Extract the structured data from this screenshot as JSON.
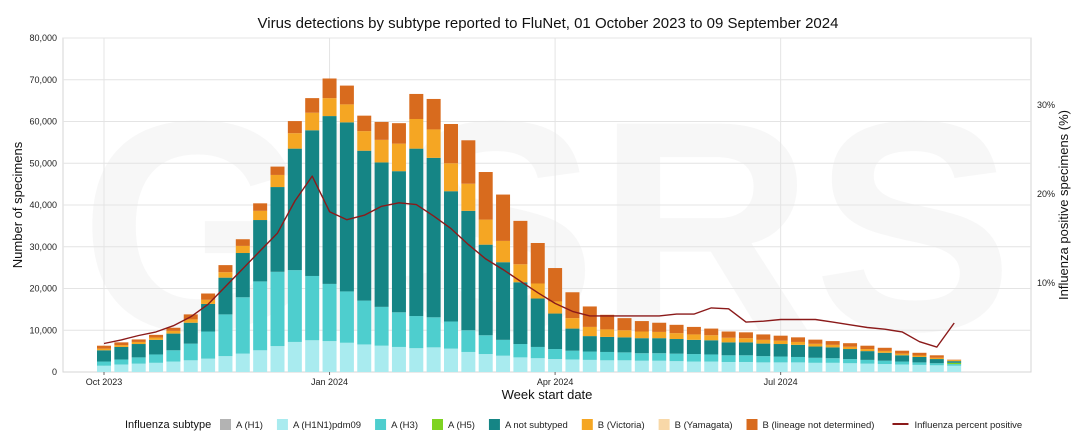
{
  "chart_data": {
    "type": "bar",
    "stacked": true,
    "title": "Virus detections by subtype reported to FluNet, 01 October 2023 to 09 September 2024",
    "xlabel": "Week start date",
    "ylabel": "Number of specimens",
    "y2label": "Influenza positive specimens (%)",
    "watermark": "GISRS",
    "ylim": [
      0,
      80000
    ],
    "y2lim": [
      0,
      37.5
    ],
    "yticks": [
      0,
      10000,
      20000,
      30000,
      40000,
      50000,
      60000,
      70000,
      80000
    ],
    "yticklabels": [
      "0",
      "10,000",
      "20,000",
      "30,000",
      "40,000",
      "50,000",
      "60,000",
      "70,000",
      "80,000"
    ],
    "y2ticks": [
      10,
      20,
      30
    ],
    "y2ticklabels": [
      "10%",
      "20%",
      "30%"
    ],
    "x_ticks": [
      {
        "week": 0,
        "label": "Oct 2023"
      },
      {
        "week": 13,
        "label": "Jan 2024"
      },
      {
        "week": 26,
        "label": "Apr 2024"
      },
      {
        "week": 39,
        "label": "Jul 2024"
      }
    ],
    "grid": true,
    "legend_position": "bottom",
    "legend_title": "Influenza subtype",
    "weeks": 50,
    "series": [
      {
        "name": "A (H1)",
        "color": "#b3b3b3",
        "values": [
          0,
          0,
          0,
          0,
          0,
          0,
          0,
          0,
          0,
          0,
          0,
          0,
          0,
          0,
          0,
          0,
          0,
          0,
          0,
          0,
          0,
          0,
          0,
          0,
          0,
          0,
          0,
          0,
          0,
          0,
          0,
          0,
          0,
          0,
          0,
          0,
          0,
          0,
          0,
          0,
          0,
          0,
          0,
          0,
          0,
          0,
          0,
          0,
          0,
          0
        ]
      },
      {
        "name": "A (H1N1)pdm09",
        "color": "#a9ebef",
        "values": [
          1500,
          1800,
          2000,
          2200,
          2500,
          2800,
          3200,
          3800,
          4400,
          5200,
          6200,
          7200,
          7600,
          7400,
          7000,
          6600,
          6300,
          6000,
          5700,
          5900,
          5600,
          4800,
          4300,
          3900,
          3500,
          3300,
          3100,
          3000,
          2900,
          2800,
          2800,
          2700,
          2700,
          2600,
          2500,
          2500,
          2400,
          2400,
          2300,
          2300,
          2300,
          2200,
          2200,
          2100,
          2000,
          1900,
          1800,
          1700,
          1600,
          1500
        ]
      },
      {
        "name": "A (H3)",
        "color": "#4ecece",
        "values": [
          1000,
          1200,
          1500,
          2000,
          2700,
          4000,
          6500,
          10000,
          13500,
          16500,
          17800,
          17200,
          15400,
          13700,
          12300,
          10500,
          9300,
          8300,
          7700,
          7200,
          6500,
          5200,
          4500,
          3800,
          3200,
          2700,
          2400,
          2100,
          2000,
          2000,
          1900,
          1800,
          1800,
          1800,
          1800,
          1700,
          1600,
          1600,
          1500,
          1400,
          1300,
          1200,
          1100,
          1000,
          900,
          800,
          700,
          600,
          500,
          400
        ]
      },
      {
        "name": "A (H5)",
        "color": "#7ed321",
        "values": [
          0,
          0,
          0,
          0,
          0,
          0,
          0,
          0,
          0,
          0,
          0,
          0,
          0,
          0,
          0,
          0,
          0,
          0,
          0,
          0,
          0,
          0,
          0,
          0,
          0,
          0,
          0,
          0,
          0,
          0,
          0,
          0,
          0,
          0,
          0,
          0,
          0,
          0,
          0,
          0,
          0,
          0,
          0,
          0,
          0,
          0,
          0,
          0,
          0,
          300
        ]
      },
      {
        "name": "A not subtyped",
        "color": "#158585",
        "values": [
          2700,
          3000,
          3200,
          3500,
          4000,
          5000,
          6600,
          8800,
          10600,
          14700,
          20300,
          29100,
          34900,
          40200,
          40500,
          35900,
          34600,
          33800,
          40100,
          38200,
          31200,
          28600,
          21700,
          18600,
          14800,
          11600,
          8500,
          5300,
          3700,
          3600,
          3600,
          3600,
          3600,
          3500,
          3400,
          3400,
          3100,
          3100,
          3000,
          3000,
          2900,
          2700,
          2600,
          2400,
          2100,
          1900,
          1500,
          1300,
          1000,
          400
        ]
      },
      {
        "name": "B (Victoria)",
        "color": "#f5a623",
        "values": [
          400,
          450,
          500,
          550,
          650,
          800,
          1000,
          1300,
          1700,
          2200,
          2900,
          3700,
          4200,
          4300,
          4300,
          4700,
          5400,
          6600,
          7100,
          6800,
          6700,
          6500,
          6000,
          5100,
          4300,
          3600,
          2900,
          2500,
          2200,
          1800,
          1700,
          1600,
          1500,
          1400,
          1300,
          1200,
          1100,
          1000,
          900,
          800,
          700,
          650,
          600,
          550,
          500,
          450,
          400,
          350,
          300,
          250
        ]
      },
      {
        "name": "B (Yamagata)",
        "color": "#f8d8a8",
        "values": [
          0,
          0,
          0,
          0,
          0,
          0,
          0,
          0,
          0,
          0,
          0,
          0,
          0,
          0,
          0,
          0,
          0,
          0,
          0,
          0,
          0,
          0,
          0,
          0,
          0,
          0,
          0,
          0,
          0,
          0,
          0,
          0,
          0,
          0,
          0,
          0,
          0,
          0,
          0,
          0,
          0,
          0,
          0,
          0,
          0,
          0,
          0,
          0,
          0,
          0
        ]
      },
      {
        "name": "B (lineage not determined)",
        "color": "#d86b1e",
        "values": [
          700,
          650,
          600,
          650,
          750,
          1200,
          1500,
          1700,
          1600,
          1800,
          2000,
          2900,
          3500,
          4700,
          4500,
          3700,
          4300,
          4900,
          6000,
          7300,
          9400,
          10400,
          11400,
          11100,
          10400,
          9700,
          8000,
          6200,
          4900,
          3500,
          2900,
          2500,
          2200,
          2000,
          1800,
          1600,
          1500,
          1400,
          1300,
          1200,
          1100,
          1000,
          900,
          850,
          800,
          750,
          700,
          650,
          600,
          100
        ]
      }
    ],
    "line": {
      "name": "Influenza percent positive",
      "color": "#8b1a1a",
      "axis": "y2",
      "values": [
        3.2,
        3.6,
        4.1,
        4.5,
        5.2,
        6.2,
        7.6,
        9.6,
        11.6,
        13.6,
        15.6,
        19.2,
        22.0,
        18.0,
        17.1,
        17.6,
        18.6,
        19.0,
        18.8,
        17.5,
        16.1,
        14.3,
        12.7,
        11.5,
        10.2,
        8.9,
        7.7,
        6.8,
        6.3,
        6.3,
        6.3,
        6.3,
        6.3,
        6.5,
        6.5,
        7.2,
        7.1,
        5.6,
        5.7,
        5.9,
        5.9,
        5.9,
        5.6,
        5.3,
        5.0,
        4.8,
        4.5,
        3.4,
        2.8,
        5.5
      ]
    }
  }
}
